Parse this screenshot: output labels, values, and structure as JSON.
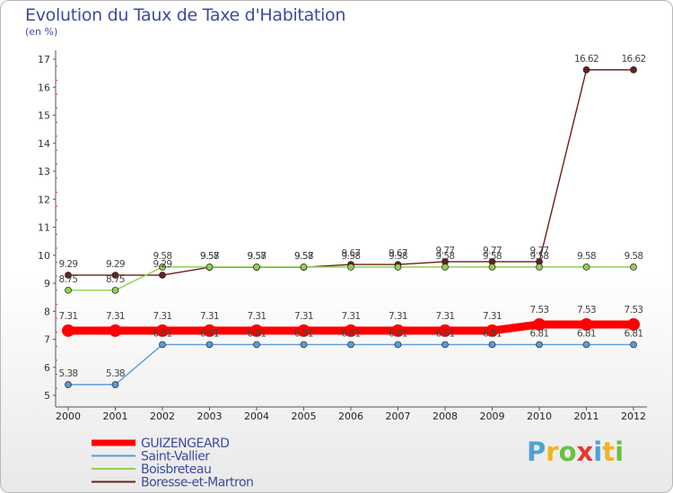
{
  "title": "Evolution du Taux de Taxe d'Habitation",
  "unit": "(en %)",
  "brand": {
    "logo_text": "Proxiti"
  },
  "chart_data": {
    "type": "line",
    "title": "Evolution du Taux de Taxe d'Habitation",
    "ylabel": "(en %)",
    "xlabel": "",
    "x": [
      "2000",
      "2001",
      "2002",
      "2003",
      "2004",
      "2005",
      "2006",
      "2007",
      "2008",
      "2009",
      "2010",
      "2011",
      "2012"
    ],
    "ylim": [
      5,
      17
    ],
    "yticks": [
      5,
      6,
      7,
      8,
      9,
      10,
      11,
      12,
      13,
      14,
      15,
      16,
      17
    ],
    "grid": false,
    "legend": "bottom-left",
    "series": [
      {
        "name": "GUIZENGEARD",
        "color": "#ff0000",
        "values": [
          7.31,
          7.31,
          7.31,
          7.31,
          7.31,
          7.31,
          7.31,
          7.31,
          7.31,
          7.31,
          7.53,
          7.53,
          7.53
        ],
        "labels": [
          "7.31",
          "7.31",
          "7.31",
          "7.31",
          "7.31",
          "7.31",
          "7.31",
          "7.31",
          "7.31",
          "7.31",
          "7.53",
          "7.53",
          "7.53"
        ]
      },
      {
        "name": "Saint-Vallier",
        "color": "#5b9bd5",
        "values": [
          5.38,
          5.38,
          6.81,
          6.81,
          6.81,
          6.81,
          6.81,
          6.81,
          6.81,
          6.81,
          6.81,
          6.81,
          6.81
        ],
        "labels": [
          "5.38",
          "5.38",
          "6.81",
          "6.81",
          "6.81",
          "6.81",
          "6.81",
          "6.81",
          "6.81",
          "6.81",
          "6.81",
          "6.81",
          "6.81"
        ]
      },
      {
        "name": "Boisbreteau",
        "color": "#8fd14f",
        "values": [
          8.75,
          8.75,
          9.58,
          9.58,
          9.58,
          9.58,
          9.58,
          9.58,
          9.58,
          9.58,
          9.58,
          9.58,
          9.58
        ],
        "labels": [
          "8.75",
          "8.75",
          "9.58",
          "9.58",
          "9.58",
          "9.58",
          "9.58",
          "9.58",
          "9.58",
          "9.58",
          "9.58",
          "9.58",
          "9.58"
        ]
      },
      {
        "name": "Boresse-et-Martron",
        "color": "#6b1f1f",
        "values": [
          9.29,
          9.29,
          9.29,
          9.57,
          9.57,
          9.57,
          9.67,
          9.67,
          9.77,
          9.77,
          9.77,
          16.62,
          16.62
        ],
        "labels": [
          "9.29",
          "9.29",
          "9.29",
          "9.57",
          "9.57",
          "9.57",
          "9.67",
          "9.67",
          "9.77",
          "9.77",
          "9.77",
          "16.62",
          "16.62"
        ]
      }
    ]
  }
}
